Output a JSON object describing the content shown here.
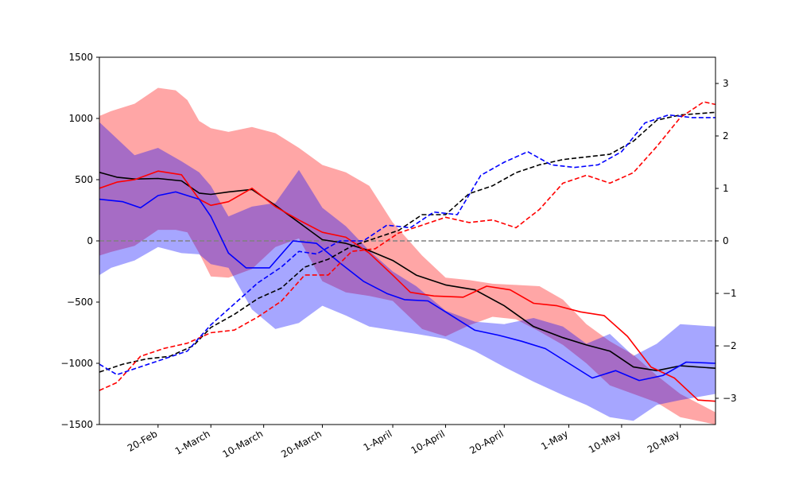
{
  "chart_data": {
    "type": "line",
    "title": "",
    "xlabel": "",
    "ylabel_left": "",
    "ylabel_right": "",
    "ylim_left": [
      -1500,
      1500
    ],
    "ylim_right": [
      -3.5,
      3.5
    ],
    "xlim": [
      "2018-02-10",
      "2018-05-26"
    ],
    "grid": false,
    "legend": "none",
    "left_yticks": [
      {
        "value": 1500,
        "label": "1500"
      },
      {
        "value": 1000,
        "label": "1000"
      },
      {
        "value": 500,
        "label": "500"
      },
      {
        "value": 0,
        "label": "0"
      },
      {
        "value": -500,
        "label": "−500"
      },
      {
        "value": -1000,
        "label": "−1000"
      },
      {
        "value": -1500,
        "label": "−1500"
      }
    ],
    "right_yticks": [
      {
        "value": 3,
        "label": "3"
      },
      {
        "value": 2,
        "label": "2"
      },
      {
        "value": 1,
        "label": "1"
      },
      {
        "value": 0,
        "label": "0"
      },
      {
        "value": -1,
        "label": "−1"
      },
      {
        "value": -2,
        "label": "−2"
      },
      {
        "value": -3,
        "label": "−3"
      }
    ],
    "xticks": [
      {
        "date": "2018-02-20",
        "label": "20-Feb"
      },
      {
        "date": "2018-03-01",
        "label": "1-March"
      },
      {
        "date": "2018-03-10",
        "label": "10-March"
      },
      {
        "date": "2018-03-20",
        "label": "20-March"
      },
      {
        "date": "2018-04-01",
        "label": "1-April"
      },
      {
        "date": "2018-04-10",
        "label": "10-April"
      },
      {
        "date": "2018-04-20",
        "label": "20-April"
      },
      {
        "date": "2018-05-01",
        "label": "1-May"
      },
      {
        "date": "2018-05-10",
        "label": "10-May"
      },
      {
        "date": "2018-05-20",
        "label": "20-May"
      }
    ],
    "zero_line": {
      "value": 0,
      "color": "#808080",
      "style": "dashed"
    },
    "bands": [
      {
        "color": "#ff0000",
        "opacity": 0.35,
        "axis": "left",
        "x": [
          "2018-02-10",
          "2018-02-12",
          "2018-02-16",
          "2018-02-20",
          "2018-02-23",
          "2018-02-25",
          "2018-02-27",
          "2018-03-01",
          "2018-03-04",
          "2018-03-08",
          "2018-03-12",
          "2018-03-16",
          "2018-03-20",
          "2018-03-24",
          "2018-03-28",
          "2018-04-01",
          "2018-04-06",
          "2018-04-10",
          "2018-04-14",
          "2018-04-18",
          "2018-04-22",
          "2018-04-26",
          "2018-04-30",
          "2018-05-04",
          "2018-05-08",
          "2018-05-12",
          "2018-05-16",
          "2018-05-20",
          "2018-05-26"
        ],
        "upper": [
          1020,
          1060,
          1120,
          1250,
          1230,
          1150,
          980,
          920,
          890,
          930,
          880,
          760,
          620,
          560,
          450,
          150,
          -120,
          -300,
          -320,
          -350,
          -360,
          -370,
          -480,
          -680,
          -820,
          -930,
          -1100,
          -1250,
          -1400
        ],
        "lower": [
          -120,
          -90,
          -40,
          90,
          90,
          70,
          -100,
          -290,
          -300,
          -230,
          -50,
          20,
          -330,
          -420,
          -450,
          -490,
          -720,
          -780,
          -690,
          -620,
          -640,
          -740,
          -850,
          -1000,
          -1180,
          -1250,
          -1320,
          -1440,
          -1500
        ]
      },
      {
        "color": "#0000ff",
        "opacity": 0.35,
        "axis": "left",
        "x": [
          "2018-02-10",
          "2018-02-12",
          "2018-02-16",
          "2018-02-20",
          "2018-02-24",
          "2018-02-27",
          "2018-03-01",
          "2018-03-04",
          "2018-03-08",
          "2018-03-12",
          "2018-03-16",
          "2018-03-20",
          "2018-03-24",
          "2018-03-28",
          "2018-04-01",
          "2018-04-05",
          "2018-04-10",
          "2018-04-15",
          "2018-04-20",
          "2018-04-25",
          "2018-04-30",
          "2018-05-04",
          "2018-05-08",
          "2018-05-12",
          "2018-05-16",
          "2018-05-20",
          "2018-05-26"
        ],
        "upper": [
          970,
          880,
          700,
          760,
          650,
          560,
          450,
          200,
          280,
          310,
          580,
          270,
          120,
          -80,
          -250,
          -370,
          -570,
          -660,
          -680,
          -630,
          -700,
          -840,
          -760,
          -940,
          -840,
          -680,
          -700
        ],
        "lower": [
          -280,
          -220,
          -160,
          -50,
          -100,
          -110,
          -190,
          -220,
          -560,
          -720,
          -670,
          -530,
          -610,
          -700,
          -730,
          -760,
          -800,
          -900,
          -1030,
          -1150,
          -1260,
          -1340,
          -1440,
          -1470,
          -1340,
          -1300,
          -1250
        ]
      }
    ],
    "series": [
      {
        "color": "#000000",
        "style": "solid",
        "axis": "left",
        "x": [
          "2018-02-10",
          "2018-02-13",
          "2018-02-16",
          "2018-02-20",
          "2018-02-24",
          "2018-02-27",
          "2018-03-01",
          "2018-03-04",
          "2018-03-08",
          "2018-03-12",
          "2018-03-16",
          "2018-03-20",
          "2018-03-24",
          "2018-03-28",
          "2018-04-01",
          "2018-04-05",
          "2018-04-10",
          "2018-04-15",
          "2018-04-20",
          "2018-04-25",
          "2018-04-30",
          "2018-05-04",
          "2018-05-08",
          "2018-05-12",
          "2018-05-16",
          "2018-05-20",
          "2018-05-26"
        ],
        "values": [
          560,
          520,
          505,
          510,
          490,
          390,
          380,
          400,
          420,
          290,
          150,
          10,
          -20,
          -80,
          -160,
          -280,
          -360,
          -400,
          -530,
          -700,
          -790,
          -850,
          -900,
          -1030,
          -1060,
          -1020,
          -1040
        ]
      },
      {
        "color": "#ff0000",
        "style": "solid",
        "axis": "left",
        "x": [
          "2018-02-10",
          "2018-02-13",
          "2018-02-16",
          "2018-02-20",
          "2018-02-24",
          "2018-02-27",
          "2018-03-01",
          "2018-03-04",
          "2018-03-08",
          "2018-03-12",
          "2018-03-16",
          "2018-03-20",
          "2018-03-24",
          "2018-03-28",
          "2018-04-01",
          "2018-04-04",
          "2018-04-08",
          "2018-04-13",
          "2018-04-17",
          "2018-04-21",
          "2018-04-25",
          "2018-04-29",
          "2018-05-03",
          "2018-05-07",
          "2018-05-11",
          "2018-05-15",
          "2018-05-19",
          "2018-05-23",
          "2018-05-26"
        ],
        "values": [
          430,
          480,
          500,
          570,
          540,
          340,
          290,
          320,
          430,
          280,
          170,
          70,
          30,
          -100,
          -280,
          -420,
          -450,
          -460,
          -370,
          -400,
          -510,
          -530,
          -580,
          -610,
          -780,
          -1030,
          -1120,
          -1300,
          -1310
        ]
      },
      {
        "color": "#0000ff",
        "style": "solid",
        "axis": "left",
        "x": [
          "2018-02-10",
          "2018-02-14",
          "2018-02-17",
          "2018-02-20",
          "2018-02-23",
          "2018-02-27",
          "2018-03-01",
          "2018-03-04",
          "2018-03-07",
          "2018-03-11",
          "2018-03-15",
          "2018-03-19",
          "2018-03-23",
          "2018-03-27",
          "2018-03-31",
          "2018-04-03",
          "2018-04-07",
          "2018-04-11",
          "2018-04-15",
          "2018-04-19",
          "2018-04-23",
          "2018-04-27",
          "2018-05-01",
          "2018-05-05",
          "2018-05-09",
          "2018-05-13",
          "2018-05-17",
          "2018-05-21",
          "2018-05-26"
        ],
        "values": [
          340,
          320,
          270,
          370,
          400,
          340,
          200,
          -100,
          -220,
          -220,
          0,
          -20,
          -180,
          -330,
          -430,
          -480,
          -490,
          -610,
          -730,
          -770,
          -820,
          -880,
          -1000,
          -1120,
          -1060,
          -1140,
          -1100,
          -990,
          -1000
        ]
      },
      {
        "color": "#000000",
        "style": "dashed",
        "axis": "right",
        "x": [
          "2018-02-10",
          "2018-02-14",
          "2018-02-18",
          "2018-02-22",
          "2018-02-26",
          "2018-03-01",
          "2018-03-05",
          "2018-03-09",
          "2018-03-13",
          "2018-03-17",
          "2018-03-21",
          "2018-03-25",
          "2018-03-29",
          "2018-04-02",
          "2018-04-06",
          "2018-04-10",
          "2018-04-14",
          "2018-04-18",
          "2018-04-22",
          "2018-04-26",
          "2018-04-30",
          "2018-05-04",
          "2018-05-08",
          "2018-05-12",
          "2018-05-16",
          "2018-05-20",
          "2018-05-26"
        ],
        "values": [
          -2.5,
          -2.35,
          -2.25,
          -2.2,
          -2.0,
          -1.65,
          -1.4,
          -1.1,
          -0.9,
          -0.5,
          -0.35,
          -0.1,
          0.05,
          0.2,
          0.5,
          0.5,
          0.9,
          1.05,
          1.3,
          1.45,
          1.55,
          1.6,
          1.65,
          1.9,
          2.3,
          2.4,
          2.45
        ]
      },
      {
        "color": "#ff0000",
        "style": "dashed",
        "axis": "right",
        "x": [
          "2018-02-10",
          "2018-02-13",
          "2018-02-17",
          "2018-02-21",
          "2018-02-25",
          "2018-03-01",
          "2018-03-05",
          "2018-03-09",
          "2018-03-13",
          "2018-03-17",
          "2018-03-21",
          "2018-03-25",
          "2018-03-29",
          "2018-04-02",
          "2018-04-06",
          "2018-04-10",
          "2018-04-14",
          "2018-04-18",
          "2018-04-22",
          "2018-04-26",
          "2018-04-30",
          "2018-05-04",
          "2018-05-08",
          "2018-05-12",
          "2018-05-16",
          "2018-05-20",
          "2018-05-24",
          "2018-05-26"
        ],
        "values": [
          -2.85,
          -2.7,
          -2.2,
          -2.05,
          -1.95,
          -1.75,
          -1.7,
          -1.45,
          -1.15,
          -0.65,
          -0.65,
          -0.2,
          -0.15,
          0.15,
          0.3,
          0.45,
          0.35,
          0.4,
          0.25,
          0.6,
          1.1,
          1.25,
          1.1,
          1.3,
          1.8,
          2.35,
          2.65,
          2.6
        ]
      },
      {
        "color": "#0000ff",
        "style": "dashed",
        "axis": "right",
        "x": [
          "2018-02-10",
          "2018-02-13",
          "2018-02-17",
          "2018-02-21",
          "2018-02-25",
          "2018-03-01",
          "2018-03-05",
          "2018-03-09",
          "2018-03-13",
          "2018-03-16",
          "2018-03-19",
          "2018-03-23",
          "2018-03-27",
          "2018-03-31",
          "2018-04-04",
          "2018-04-08",
          "2018-04-12",
          "2018-04-16",
          "2018-04-20",
          "2018-04-24",
          "2018-04-28",
          "2018-05-02",
          "2018-05-06",
          "2018-05-10",
          "2018-05-14",
          "2018-05-18",
          "2018-05-22",
          "2018-05-26"
        ],
        "values": [
          -2.35,
          -2.55,
          -2.4,
          -2.25,
          -2.1,
          -1.6,
          -1.2,
          -0.8,
          -0.5,
          -0.2,
          -0.25,
          0.0,
          0.0,
          0.3,
          0.25,
          0.55,
          0.5,
          1.25,
          1.5,
          1.7,
          1.45,
          1.4,
          1.45,
          1.7,
          2.25,
          2.4,
          2.35,
          2.35
        ]
      }
    ]
  }
}
